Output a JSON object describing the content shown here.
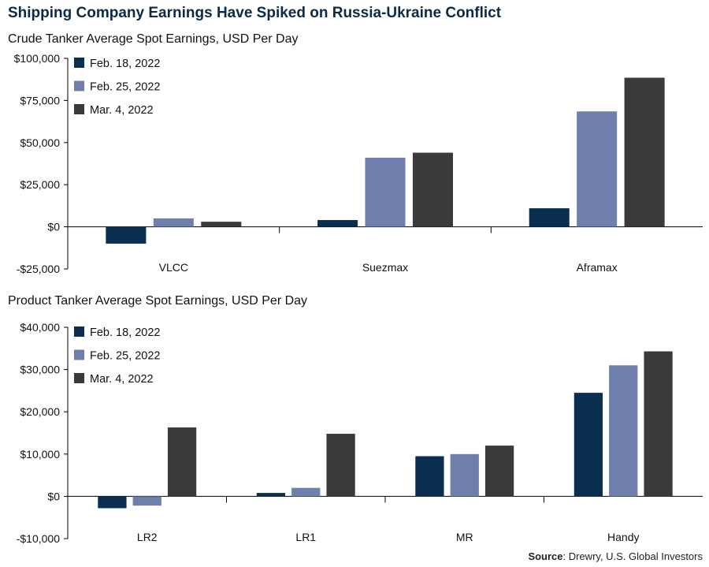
{
  "title": "Shipping Company Earnings Have Spiked on Russia-Ukraine Conflict",
  "source_label": "Source",
  "source_text": ": Drewry, U.S. Global Investors",
  "colors": {
    "feb18": "#0a2e4f",
    "feb25": "#6f7fab",
    "mar4": "#3a3a3a",
    "title": "#0b2a46"
  },
  "chart_data": [
    {
      "type": "bar",
      "title": "Crude Tanker Average Spot Earnings, USD Per Day",
      "categories": [
        "VLCC",
        "Suezmax",
        "Aframax"
      ],
      "series": [
        {
          "name": "Feb. 18, 2022",
          "values": [
            -10000,
            4000,
            11000
          ]
        },
        {
          "name": "Feb. 25, 2022",
          "values": [
            5000,
            41000,
            68500
          ]
        },
        {
          "name": "Mar. 4, 2022",
          "values": [
            3000,
            44000,
            88500
          ]
        }
      ],
      "ylim": [
        -25000,
        100000
      ],
      "yticks": [
        -25000,
        0,
        25000,
        50000,
        75000,
        100000
      ],
      "ytick_labels": [
        "-$25,000",
        "$0",
        "$25,000",
        "$50,000",
        "$75,000",
        "$100,000"
      ],
      "legend": "top-left"
    },
    {
      "type": "bar",
      "title": "Product Tanker Average Spot Earnings, USD Per Day",
      "categories": [
        "LR2",
        "LR1",
        "MR",
        "Handy"
      ],
      "series": [
        {
          "name": "Feb. 18, 2022",
          "values": [
            -2800,
            800,
            9500,
            24500
          ]
        },
        {
          "name": "Feb. 25, 2022",
          "values": [
            -2200,
            2000,
            10000,
            31000
          ]
        },
        {
          "name": "Mar. 4, 2022",
          "values": [
            16300,
            14800,
            12000,
            34300
          ]
        }
      ],
      "ylim": [
        -10000,
        40000
      ],
      "yticks": [
        -10000,
        0,
        10000,
        20000,
        30000,
        40000
      ],
      "ytick_labels": [
        "-$10,000",
        "$0",
        "$10,000",
        "$20,000",
        "$30,000",
        "$40,000"
      ],
      "legend": "top-left"
    }
  ]
}
